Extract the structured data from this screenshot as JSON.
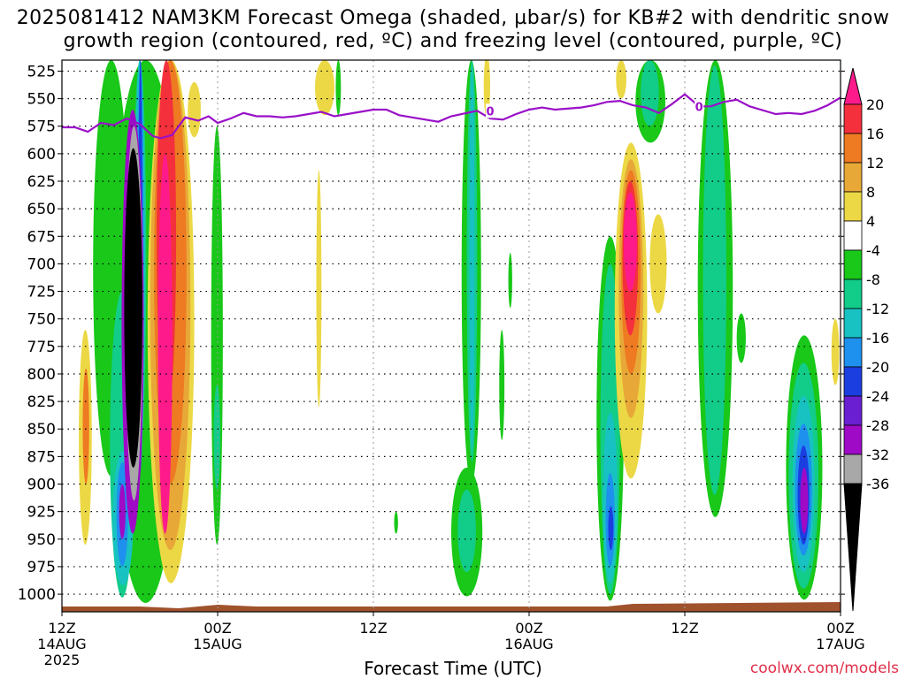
{
  "header": {
    "title_line1": "2025081412 NAM3KM Forecast Omega (shaded, µbar/s) for KB#2 with dendritic snow",
    "title_line2": "growth region (contoured, red, ºC) and freezing level (contoured, purple, ºC)"
  },
  "footer": {
    "xlabel": "Forecast Time (UTC)",
    "credit": "coolwx.com/models"
  },
  "chart_data": {
    "type": "heatmap",
    "x_axis": {
      "ticks": [
        {
          "hour": 0,
          "lines": [
            "12Z",
            "14AUG",
            "2025"
          ]
        },
        {
          "hour": 12,
          "lines": [
            "00Z",
            "15AUG"
          ]
        },
        {
          "hour": 24,
          "lines": [
            "12Z"
          ]
        },
        {
          "hour": 36,
          "lines": [
            "00Z",
            "16AUG"
          ]
        },
        {
          "hour": 48,
          "lines": [
            "12Z"
          ]
        },
        {
          "hour": 60,
          "lines": [
            "00Z",
            "17AUG"
          ]
        }
      ],
      "range_hours": [
        0,
        60
      ]
    },
    "y_axis": {
      "ticks": [
        "525",
        "550",
        "575",
        "600",
        "625",
        "650",
        "675",
        "700",
        "725",
        "750",
        "775",
        "800",
        "825",
        "850",
        "875",
        "900",
        "925",
        "950",
        "975",
        "1000"
      ],
      "range_mb": [
        515,
        1016
      ],
      "reversed": true
    },
    "grid": true,
    "colorbar": {
      "labels": [
        "20",
        "16",
        "12",
        "8",
        "4",
        "-4",
        "-8",
        "-12",
        "-16",
        "-20",
        "-24",
        "-28",
        "-32",
        "-36"
      ],
      "colors": [
        "#ff1a8c",
        "#f4303c",
        "#ee7a22",
        "#e8a838",
        "#ecd845",
        "#ffffff",
        "#19c819",
        "#12cc8a",
        "#18c2c2",
        "#1e90ee",
        "#1b3ee0",
        "#6a1fd2",
        "#9e0ac6",
        "#a8a8a8",
        "#000000"
      ]
    },
    "palette": {
      "freezing_level": "#9a10c8",
      "ground": "#a0522d",
      "credit": "#e0304a"
    },
    "freezing_level": {
      "label": "0",
      "points": [
        [
          0,
          576
        ],
        [
          1,
          576
        ],
        [
          2,
          580
        ],
        [
          3,
          572
        ],
        [
          4,
          574
        ],
        [
          5,
          568
        ],
        [
          6,
          573
        ],
        [
          7,
          584
        ],
        [
          7.6,
          586
        ],
        [
          8.5,
          583
        ],
        [
          9.5,
          567
        ],
        [
          10.5,
          570
        ],
        [
          11.3,
          566
        ],
        [
          12,
          572
        ],
        [
          13,
          568
        ],
        [
          14,
          563
        ],
        [
          15,
          566
        ],
        [
          16,
          566
        ],
        [
          17,
          567
        ],
        [
          18,
          566
        ],
        [
          20,
          562
        ],
        [
          21,
          566
        ],
        [
          22,
          564
        ],
        [
          23,
          562
        ],
        [
          24,
          560
        ],
        [
          25,
          560
        ],
        [
          26,
          565
        ],
        [
          27,
          567
        ],
        [
          29,
          571
        ],
        [
          30,
          566
        ],
        [
          32,
          561
        ],
        [
          33,
          568
        ],
        [
          34,
          569
        ],
        [
          35,
          564
        ],
        [
          36,
          560
        ],
        [
          37,
          558
        ],
        [
          38,
          560
        ],
        [
          40,
          558
        ],
        [
          41,
          556
        ],
        [
          42,
          553
        ],
        [
          43,
          552
        ],
        [
          44,
          556
        ],
        [
          45,
          558
        ],
        [
          46,
          563
        ],
        [
          47,
          555
        ],
        [
          48,
          546
        ],
        [
          48.7,
          553
        ],
        [
          49,
          557
        ],
        [
          50,
          557
        ],
        [
          51,
          553
        ],
        [
          52,
          551
        ],
        [
          53,
          557
        ],
        [
          55,
          564
        ],
        [
          56,
          563
        ],
        [
          57,
          564
        ],
        [
          58,
          561
        ],
        [
          59,
          556
        ],
        [
          60,
          549
        ]
      ]
    },
    "shading_blobs": [
      {
        "fill": "#19c819",
        "x": [
          2.4,
          5.2
        ],
        "p": [
          515,
          893
        ]
      },
      {
        "fill": "#19c819",
        "x": [
          3.7,
          9.2
        ],
        "p": [
          515,
          1008
        ]
      },
      {
        "fill": "#12cc8a",
        "x": [
          3.7,
          5.6
        ],
        "p": [
          725,
          1003
        ]
      },
      {
        "fill": "#18c2c2",
        "x": [
          3.9,
          5.5
        ],
        "p": [
          870,
          992
        ]
      },
      {
        "fill": "#1e90ee",
        "x": [
          4.2,
          5.1
        ],
        "p": [
          880,
          975
        ]
      },
      {
        "fill": "#9e0ac6",
        "x": [
          4.4,
          4.9
        ],
        "p": [
          900,
          950
        ]
      },
      {
        "fill": "#12cc8a",
        "x": [
          5.5,
          6.5
        ],
        "p": [
          515,
          870
        ]
      },
      {
        "fill": "#18c2c2",
        "x": [
          5.6,
          6.4
        ],
        "p": [
          515,
          880
        ]
      },
      {
        "fill": "#1e90ee",
        "x": [
          5.8,
          6.3
        ],
        "p": [
          515,
          887
        ]
      },
      {
        "fill": "#1b3ee0",
        "x": [
          5.9,
          6.2
        ],
        "p": [
          515,
          889
        ]
      },
      {
        "fill": "#9e0ac6",
        "x": [
          4.6,
          6.3
        ],
        "p": [
          560,
          945
        ]
      },
      {
        "fill": "#a8a8a8",
        "x": [
          4.9,
          6.2
        ],
        "p": [
          575,
          915
        ]
      },
      {
        "fill": "#000000",
        "x": [
          4.8,
          6.2
        ],
        "p": [
          595,
          885
        ]
      },
      {
        "fill": "#ecd845",
        "x": [
          1.3,
          2.3
        ],
        "p": [
          760,
          955
        ]
      },
      {
        "fill": "#ee7a22",
        "x": [
          1.6,
          2.1
        ],
        "p": [
          795,
          900
        ]
      },
      {
        "fill": "#ecd845",
        "x": [
          6.6,
          10.2
        ],
        "p": [
          515,
          990
        ]
      },
      {
        "fill": "#e8a838",
        "x": [
          6.8,
          9.9
        ],
        "p": [
          515,
          960
        ]
      },
      {
        "fill": "#ee7a22",
        "x": [
          7.1,
          9.6
        ],
        "p": [
          515,
          900
        ]
      },
      {
        "fill": "#f4303c",
        "x": [
          7.3,
          8.8
        ],
        "p": [
          515,
          840
        ]
      },
      {
        "fill": "#ff1a8c",
        "x": [
          7.4,
          8.5
        ],
        "p": [
          600,
          945
        ]
      },
      {
        "fill": "#ecd845",
        "x": [
          9.7,
          10.7
        ],
        "p": [
          535,
          585
        ]
      },
      {
        "fill": "#19c819",
        "x": [
          11.5,
          12.4
        ],
        "p": [
          575,
          955
        ]
      },
      {
        "fill": "#12cc8a",
        "x": [
          11.7,
          12.2
        ],
        "p": [
          810,
          905
        ]
      },
      {
        "fill": "#ecd845",
        "x": [
          19.5,
          21.0
        ],
        "p": [
          515,
          565
        ]
      },
      {
        "fill": "#19c819",
        "x": [
          21.1,
          21.5
        ],
        "p": [
          515,
          565
        ]
      },
      {
        "fill": "#ecd845",
        "x": [
          19.6,
          20.0
        ],
        "p": [
          615,
          830
        ]
      },
      {
        "fill": "#19c819",
        "x": [
          30.8,
          32.3
        ],
        "p": [
          515,
          900
        ]
      },
      {
        "fill": "#12cc8a",
        "x": [
          31.2,
          32.0
        ],
        "p": [
          515,
          880
        ]
      },
      {
        "fill": "#18c2c2",
        "x": [
          31.4,
          31.8
        ],
        "p": [
          520,
          870
        ]
      },
      {
        "fill": "#19c819",
        "x": [
          30.0,
          32.4
        ],
        "p": [
          885,
          1002
        ]
      },
      {
        "fill": "#12cc8a",
        "x": [
          30.5,
          31.9
        ],
        "p": [
          905,
          980
        ]
      },
      {
        "fill": "#ecd845",
        "x": [
          32.5,
          33.0
        ],
        "p": [
          510,
          568
        ]
      },
      {
        "fill": "#19c819",
        "x": [
          33.7,
          34.1
        ],
        "p": [
          760,
          860
        ]
      },
      {
        "fill": "#19c819",
        "x": [
          34.4,
          34.7
        ],
        "p": [
          690,
          740
        ]
      },
      {
        "fill": "#19c819",
        "x": [
          25.6,
          25.9
        ],
        "p": [
          925,
          945
        ]
      },
      {
        "fill": "#ecd845",
        "x": [
          42.7,
          43.5
        ],
        "p": [
          515,
          550
        ]
      },
      {
        "fill": "#19c819",
        "x": [
          41.2,
          43.3
        ],
        "p": [
          675,
          1006
        ]
      },
      {
        "fill": "#12cc8a",
        "x": [
          41.5,
          43.0
        ],
        "p": [
          700,
          1000
        ]
      },
      {
        "fill": "#18c2c2",
        "x": [
          41.7,
          42.8
        ],
        "p": [
          835,
          990
        ]
      },
      {
        "fill": "#1e90ee",
        "x": [
          41.9,
          42.6
        ],
        "p": [
          890,
          975
        ]
      },
      {
        "fill": "#1b3ee0",
        "x": [
          42.1,
          42.5
        ],
        "p": [
          920,
          960
        ]
      },
      {
        "fill": "#19c819",
        "x": [
          44.2,
          46.5
        ],
        "p": [
          515,
          590
        ]
      },
      {
        "fill": "#12cc8a",
        "x": [
          44.6,
          46.0
        ],
        "p": [
          515,
          575
        ]
      },
      {
        "fill": "#ecd845",
        "x": [
          42.6,
          45.1
        ],
        "p": [
          590,
          895
        ]
      },
      {
        "fill": "#e8a838",
        "x": [
          42.9,
          44.8
        ],
        "p": [
          605,
          840
        ]
      },
      {
        "fill": "#ee7a22",
        "x": [
          43.1,
          44.6
        ],
        "p": [
          615,
          800
        ]
      },
      {
        "fill": "#f4303c",
        "x": [
          43.2,
          44.4
        ],
        "p": [
          625,
          765
        ]
      },
      {
        "fill": "#ff1a8c",
        "x": [
          43.3,
          44.3
        ],
        "p": [
          635,
          725
        ]
      },
      {
        "fill": "#ecd845",
        "x": [
          45.3,
          46.6
        ],
        "p": [
          655,
          745
        ]
      },
      {
        "fill": "#19c819",
        "x": [
          49.0,
          51.7
        ],
        "p": [
          515,
          930
        ]
      },
      {
        "fill": "#12cc8a",
        "x": [
          49.4,
          51.2
        ],
        "p": [
          520,
          910
        ]
      },
      {
        "fill": "#19c819",
        "x": [
          52.0,
          52.7
        ],
        "p": [
          745,
          790
        ]
      },
      {
        "fill": "#19c819",
        "x": [
          55.8,
          58.6
        ],
        "p": [
          765,
          1005
        ]
      },
      {
        "fill": "#12cc8a",
        "x": [
          56.0,
          58.3
        ],
        "p": [
          790,
          995
        ]
      },
      {
        "fill": "#18c2c2",
        "x": [
          56.3,
          58.0
        ],
        "p": [
          820,
          980
        ]
      },
      {
        "fill": "#1e90ee",
        "x": [
          56.5,
          57.8
        ],
        "p": [
          845,
          965
        ]
      },
      {
        "fill": "#1b3ee0",
        "x": [
          56.7,
          57.6
        ],
        "p": [
          865,
          955
        ]
      },
      {
        "fill": "#9e0ac6",
        "x": [
          56.9,
          57.5
        ],
        "p": [
          885,
          945
        ]
      },
      {
        "fill": "#ecd845",
        "x": [
          59.3,
          59.9
        ],
        "p": [
          750,
          810
        ]
      }
    ]
  }
}
